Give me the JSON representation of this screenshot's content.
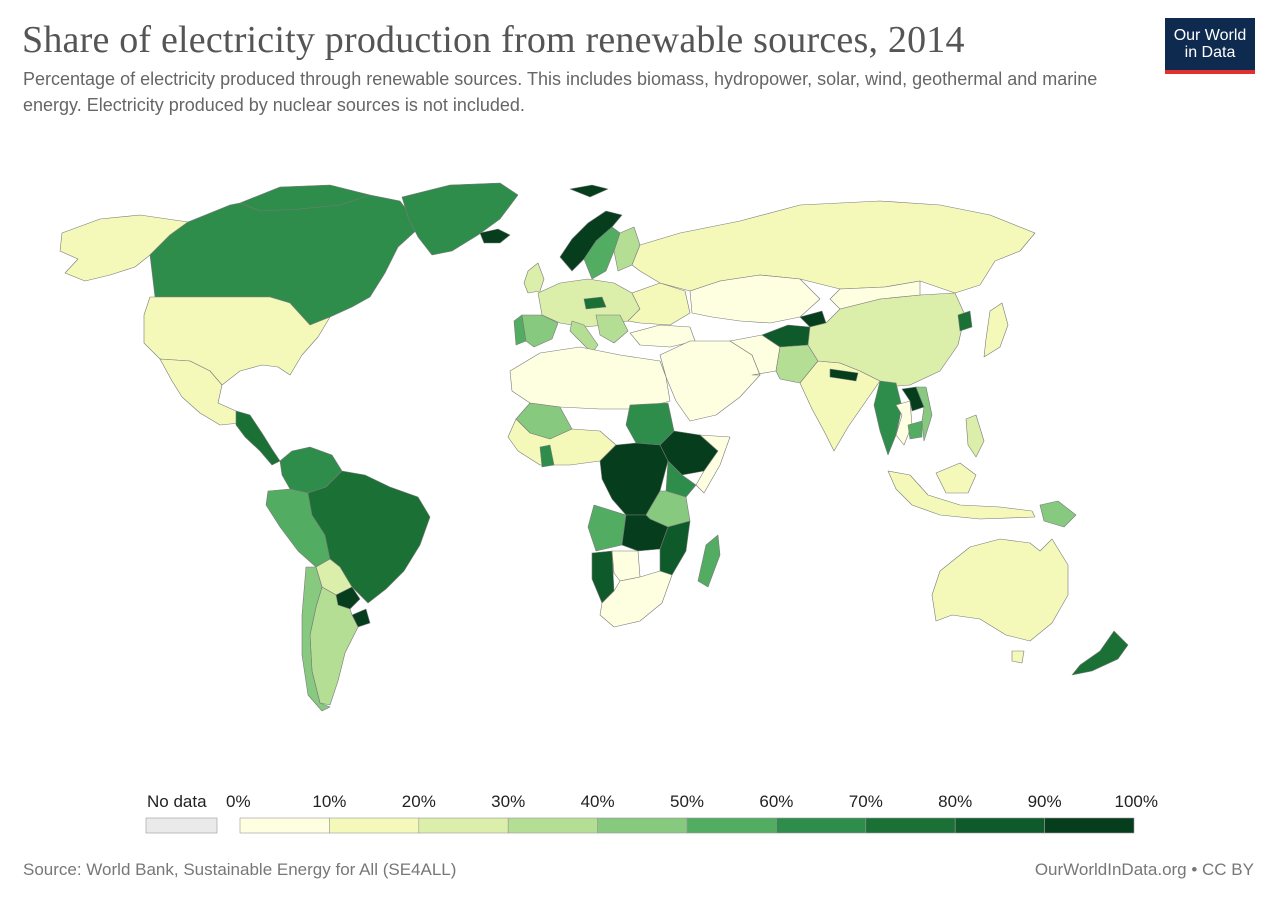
{
  "header": {
    "title": "Share of electricity production from renewable sources, 2014",
    "subtitle": "Percentage of electricity produced through renewable sources. This includes biomass, hydropower, solar, wind, geothermal and marine energy. Electricity produced by nuclear sources is not included."
  },
  "logo": {
    "line1": "Our World",
    "line2": "in Data"
  },
  "legend": {
    "no_data_label": "No data",
    "no_data_color": "#eaeaea",
    "bin_labels": [
      "0%",
      "10%",
      "20%",
      "30%",
      "40%",
      "50%",
      "60%",
      "70%",
      "80%",
      "90%",
      "100%"
    ],
    "bin_colors": [
      "#fefee0",
      "#f4f9b9",
      "#dbeeaa",
      "#b4de94",
      "#86c97f",
      "#52ad63",
      "#2f8d4b",
      "#1b7036",
      "#0e5a2a",
      "#063d1c"
    ]
  },
  "map": {
    "type": "choropleth",
    "metric": "Share of electricity production from renewable sources (%)",
    "year": 2014,
    "regions": [
      {
        "name": "Canada",
        "bin": "60-70%"
      },
      {
        "name": "Greenland",
        "bin": "60-70%"
      },
      {
        "name": "Alaska",
        "bin": "10-20%"
      },
      {
        "name": "United States",
        "bin": "10-20%"
      },
      {
        "name": "Mexico",
        "bin": "10-20%"
      },
      {
        "name": "Central America",
        "bin": "60-80%"
      },
      {
        "name": "Colombia",
        "bin": "60-70%"
      },
      {
        "name": "Venezuela",
        "bin": "60-70%"
      },
      {
        "name": "Peru",
        "bin": "50-60%"
      },
      {
        "name": "Ecuador",
        "bin": "40-50%"
      },
      {
        "name": "Brazil",
        "bin": "70-80%"
      },
      {
        "name": "Bolivia",
        "bin": "20-30%"
      },
      {
        "name": "Paraguay",
        "bin": "90-100%"
      },
      {
        "name": "Uruguay",
        "bin": "90-100%"
      },
      {
        "name": "Argentina",
        "bin": "30-40%"
      },
      {
        "name": "Chile",
        "bin": "40-50%"
      },
      {
        "name": "Iceland",
        "bin": "90-100%"
      },
      {
        "name": "Norway",
        "bin": "90-100%"
      },
      {
        "name": "Sweden",
        "bin": "50-60%"
      },
      {
        "name": "Finland",
        "bin": "30-40%"
      },
      {
        "name": "Western Europe",
        "bin": "20-30%"
      },
      {
        "name": "Portugal",
        "bin": "50-60%"
      },
      {
        "name": "Spain",
        "bin": "40-50%"
      },
      {
        "name": "Austria",
        "bin": "70-80%"
      },
      {
        "name": "Russia",
        "bin": "10-20%"
      },
      {
        "name": "Kazakhstan",
        "bin": "0-10%"
      },
      {
        "name": "Middle East",
        "bin": "0-10%"
      },
      {
        "name": "North Africa",
        "bin": "0-10%"
      },
      {
        "name": "Sudan",
        "bin": "60-70%"
      },
      {
        "name": "Ethiopia",
        "bin": "90-100%"
      },
      {
        "name": "DR Congo",
        "bin": "90-100%"
      },
      {
        "name": "Zambia",
        "bin": "90-100%"
      },
      {
        "name": "Mozambique",
        "bin": "80-90%"
      },
      {
        "name": "Namibia",
        "bin": "80-90%"
      },
      {
        "name": "Angola",
        "bin": "50-60%"
      },
      {
        "name": "Tanzania",
        "bin": "40-50%"
      },
      {
        "name": "Kenya",
        "bin": "60-70%"
      },
      {
        "name": "Madagascar",
        "bin": "50-60%"
      },
      {
        "name": "South Africa",
        "bin": "0-10%"
      },
      {
        "name": "Botswana",
        "bin": "0-10%"
      },
      {
        "name": "Mali",
        "bin": "40-50%"
      },
      {
        "name": "Ghana",
        "bin": "60-70%"
      },
      {
        "name": "India",
        "bin": "10-20%"
      },
      {
        "name": "Pakistan",
        "bin": "30-40%"
      },
      {
        "name": "Afghanistan",
        "bin": "80-90%"
      },
      {
        "name": "Tajikistan",
        "bin": "90-100%"
      },
      {
        "name": "Nepal",
        "bin": "90-100%"
      },
      {
        "name": "China",
        "bin": "20-30%"
      },
      {
        "name": "Mongolia",
        "bin": "0-10%"
      },
      {
        "name": "North Korea",
        "bin": "70-80%"
      },
      {
        "name": "Myanmar",
        "bin": "60-70%"
      },
      {
        "name": "Laos",
        "bin": "90-100%"
      },
      {
        "name": "Vietnam",
        "bin": "40-50%"
      },
      {
        "name": "Cambodia",
        "bin": "50-60%"
      },
      {
        "name": "Japan",
        "bin": "10-20%"
      },
      {
        "name": "Indonesia",
        "bin": "10-20%"
      },
      {
        "name": "Philippines",
        "bin": "20-30%"
      },
      {
        "name": "Papua New Guinea",
        "bin": "40-50%"
      },
      {
        "name": "Australia",
        "bin": "10-20%"
      },
      {
        "name": "New Zealand",
        "bin": "70-80%"
      }
    ]
  },
  "footer": {
    "source": "Source: World Bank, Sustainable Energy for All (SE4ALL)",
    "credit": "OurWorldInData.org • CC BY"
  }
}
